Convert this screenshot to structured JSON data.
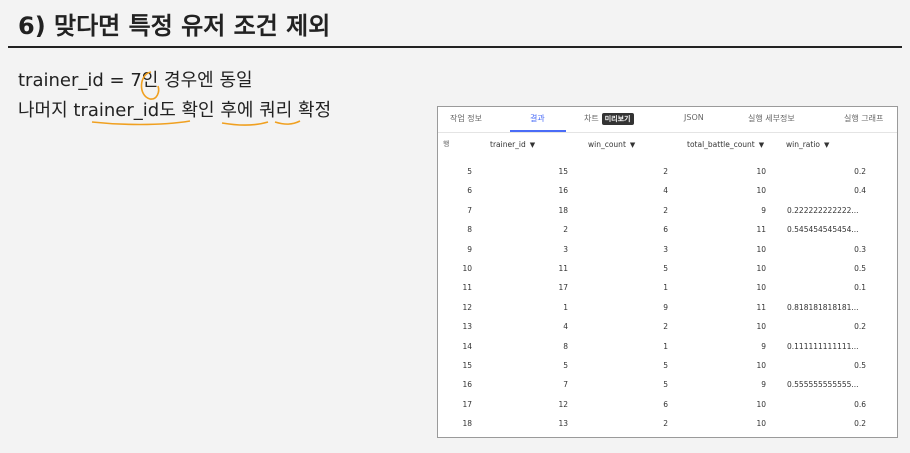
{
  "slide": {
    "title": "6) 맞다면 특정 유저 조건 제외",
    "note_line1": "trainer_id = 7인 경우엔 동일",
    "note_line2": "나머지 trainer_id도 확인 후에 쿼리 확정"
  },
  "panel": {
    "tabs": [
      {
        "label": "작업 정보",
        "active": false
      },
      {
        "label": "결과",
        "active": true
      },
      {
        "label": "차트",
        "active": false
      },
      {
        "label": "JSON",
        "active": false
      },
      {
        "label": "실행 세부정보",
        "active": false
      },
      {
        "label": "실행 그래프",
        "active": false
      }
    ],
    "preview_badge": "미리보기",
    "row_header": "행",
    "columns": [
      {
        "label": "trainer_id",
        "sort_icon": "sort-caret-down-icon"
      },
      {
        "label": "win_count",
        "sort_icon": "sort-caret-down-icon"
      },
      {
        "label": "total_battle_count",
        "sort_icon": "sort-caret-down-icon"
      },
      {
        "label": "win_ratio",
        "sort_icon": "sort-caret-down-icon"
      }
    ],
    "rows": [
      [
        "5",
        "15",
        "2",
        "10",
        "0.2"
      ],
      [
        "6",
        "16",
        "4",
        "10",
        "0.4"
      ],
      [
        "7",
        "18",
        "2",
        "9",
        "0.222222222222..."
      ],
      [
        "8",
        "2",
        "6",
        "11",
        "0.545454545454..."
      ],
      [
        "9",
        "3",
        "3",
        "10",
        "0.3"
      ],
      [
        "10",
        "11",
        "5",
        "10",
        "0.5"
      ],
      [
        "11",
        "17",
        "1",
        "10",
        "0.1"
      ],
      [
        "12",
        "1",
        "9",
        "11",
        "0.818181818181..."
      ],
      [
        "13",
        "4",
        "2",
        "10",
        "0.2"
      ],
      [
        "14",
        "8",
        "1",
        "9",
        "0.111111111111..."
      ],
      [
        "15",
        "5",
        "5",
        "10",
        "0.5"
      ],
      [
        "16",
        "7",
        "5",
        "9",
        "0.555555555555..."
      ],
      [
        "17",
        "12",
        "6",
        "10",
        "0.6"
      ],
      [
        "18",
        "13",
        "2",
        "10",
        "0.2"
      ]
    ]
  },
  "colors": {
    "accent": "#4a6cf7",
    "annotation": "#f0a020"
  }
}
